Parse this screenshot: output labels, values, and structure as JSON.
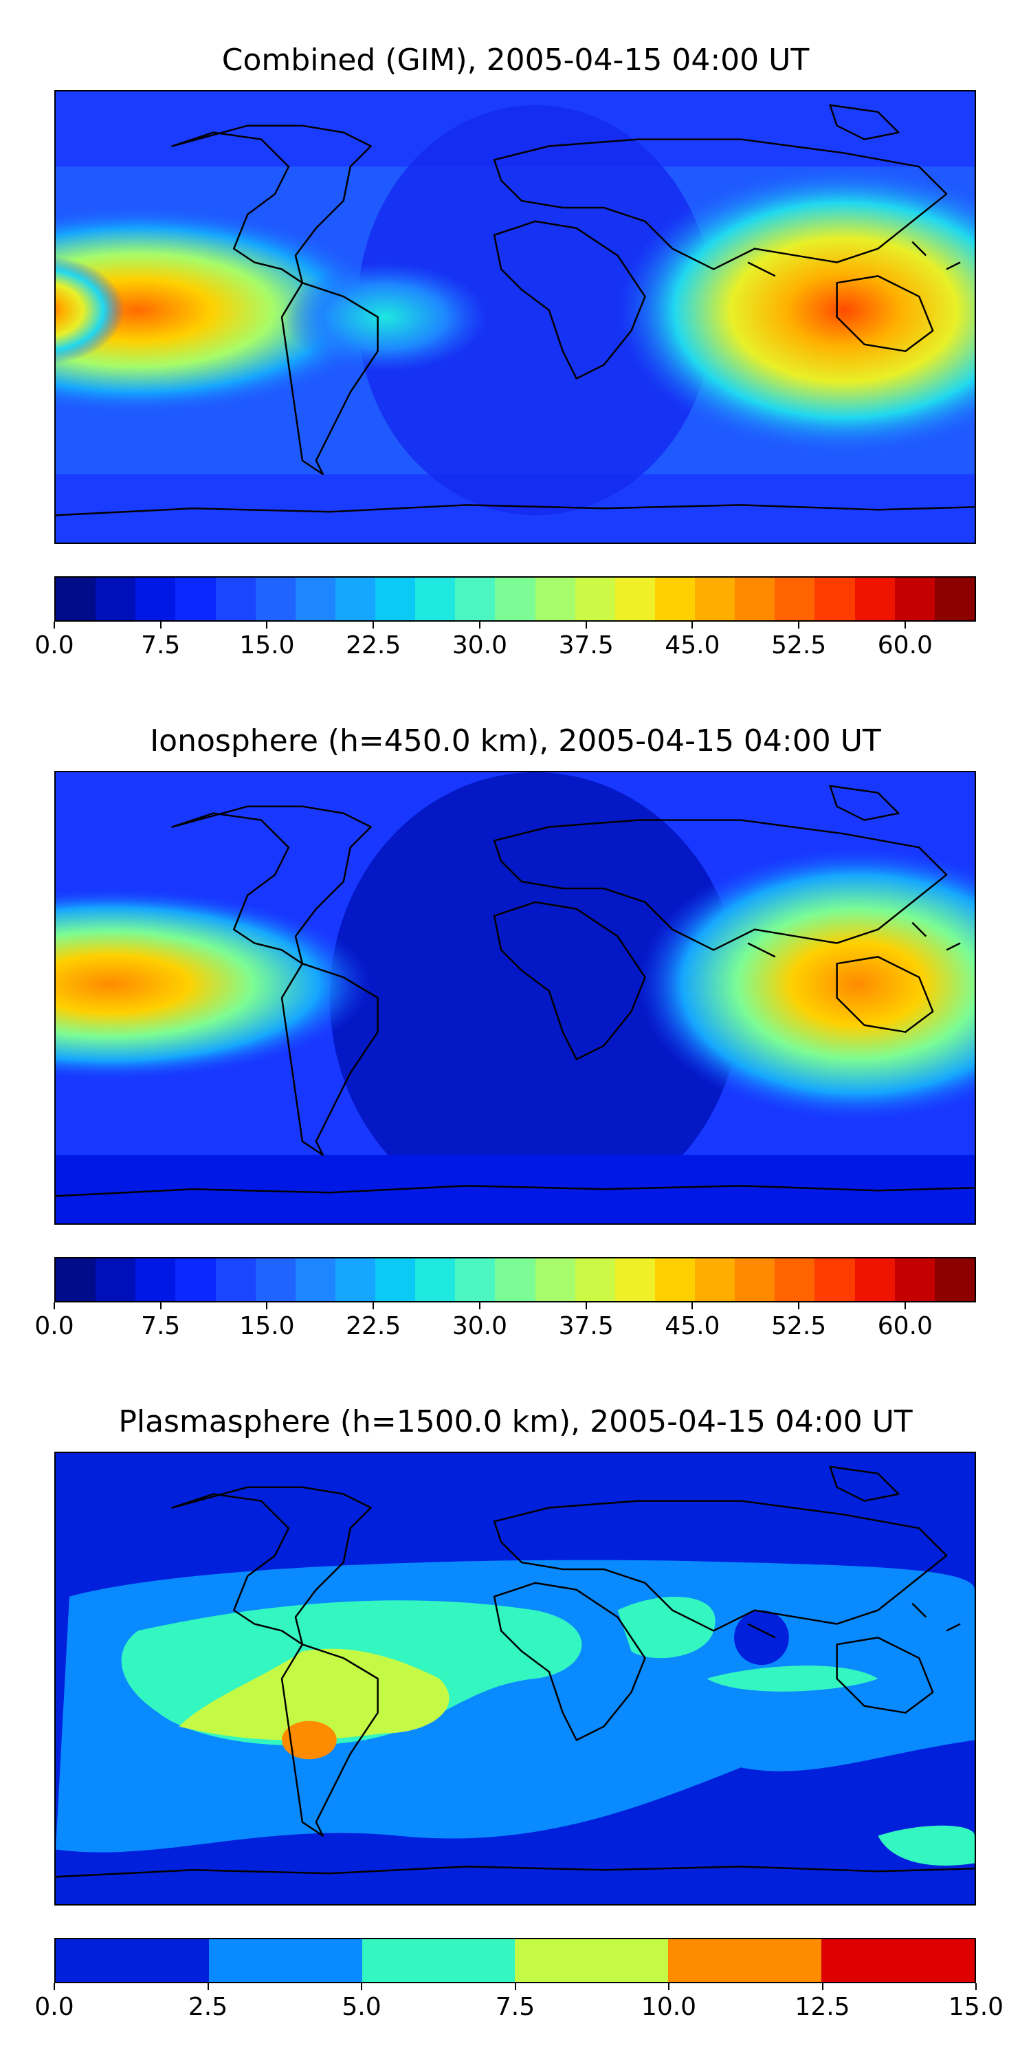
{
  "panels": [
    {
      "title": "Combined (GIM), 2005-04-15 04:00 UT",
      "colorbar": {
        "min": 0.0,
        "max": 65.0,
        "tick_labels": [
          "0.0",
          "7.5",
          "15.0",
          "22.5",
          "30.0",
          "37.5",
          "45.0",
          "52.5",
          "60.0"
        ],
        "tick_values": [
          0.0,
          7.5,
          15.0,
          22.5,
          30.0,
          37.5,
          45.0,
          52.5,
          60.0
        ],
        "colors": [
          "#000c8a",
          "#0010b8",
          "#0018e6",
          "#0a28ff",
          "#1a46ff",
          "#1f64ff",
          "#1e86ff",
          "#15a6ff",
          "#0ccaf6",
          "#1ee8e0",
          "#4bf6c0",
          "#7cfc94",
          "#a6fc6a",
          "#ccf846",
          "#f0f028",
          "#ffcf00",
          "#ffad00",
          "#ff8a00",
          "#ff6400",
          "#ff3c00",
          "#ef1400",
          "#c40000",
          "#8c0000"
        ]
      }
    },
    {
      "title": "Ionosphere  (h=450.0 km), 2005-04-15 04:00 UT",
      "colorbar": {
        "min": 0.0,
        "max": 65.0,
        "tick_labels": [
          "0.0",
          "7.5",
          "15.0",
          "22.5",
          "30.0",
          "37.5",
          "45.0",
          "52.5",
          "60.0"
        ],
        "tick_values": [
          0.0,
          7.5,
          15.0,
          22.5,
          30.0,
          37.5,
          45.0,
          52.5,
          60.0
        ],
        "colors": [
          "#000c8a",
          "#0010b8",
          "#0018e6",
          "#0a28ff",
          "#1a46ff",
          "#1f64ff",
          "#1e86ff",
          "#15a6ff",
          "#0ccaf6",
          "#1ee8e0",
          "#4bf6c0",
          "#7cfc94",
          "#a6fc6a",
          "#ccf846",
          "#f0f028",
          "#ffcf00",
          "#ffad00",
          "#ff8a00",
          "#ff6400",
          "#ff3c00",
          "#ef1400",
          "#c40000",
          "#8c0000"
        ]
      }
    },
    {
      "title": "Plasmasphere (h=1500.0 km), 2005-04-15 04:00 UT",
      "colorbar": {
        "min": 0.0,
        "max": 15.0,
        "tick_labels": [
          "0.0",
          "2.5",
          "5.0",
          "7.5",
          "10.0",
          "12.5",
          "15.0"
        ],
        "tick_values": [
          0.0,
          2.5,
          5.0,
          7.5,
          10.0,
          12.5,
          15.0
        ],
        "colors": [
          "#0020dc",
          "#0a8aff",
          "#34f6c0",
          "#c4fa46",
          "#ff8c00",
          "#dc0000"
        ]
      }
    }
  ],
  "map_colors": {
    "ocean_low": "#0018e6",
    "land_outline": "#000000"
  }
}
